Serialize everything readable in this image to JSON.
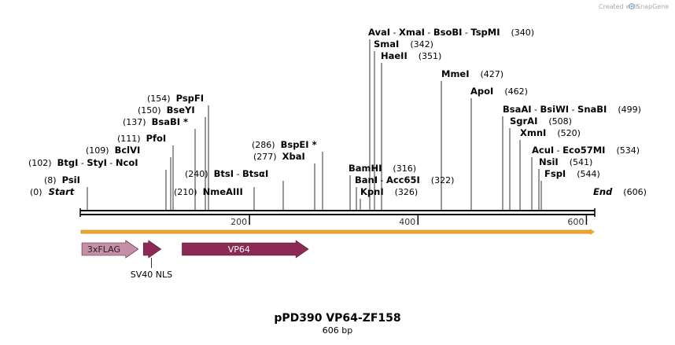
{
  "app": {
    "credit_prefix": "Created with",
    "credit_brand": "SnapGene",
    "brand_color": "#9a9a9a"
  },
  "map": {
    "title": "pPD390 VP64-ZF158",
    "subtitle": "606 bp",
    "length_bp": 606,
    "axis_ticks": [
      {
        "value": 200,
        "label": "200"
      },
      {
        "value": 400,
        "label": "400"
      },
      {
        "value": 600,
        "label": "600"
      }
    ],
    "colors": {
      "backbone": "#000000",
      "orf": "#f5a623",
      "flag": "#c58fa8",
      "nls": "#8b2a55",
      "vp64": "#8b2a55"
    }
  },
  "sites": [
    {
      "pos_text": "(0)",
      "names": [
        "Start"
      ],
      "italic": true
    },
    {
      "pos_text": "(8)",
      "names": [
        "PsiI"
      ]
    },
    {
      "pos_text": "(102)",
      "names": [
        "BtgI",
        "StyI",
        "NcoI"
      ]
    },
    {
      "pos_text": "(109)",
      "names": [
        "BclVI"
      ]
    },
    {
      "pos_text": "(111)",
      "names": [
        "PfoI"
      ]
    },
    {
      "pos_text": "(137)",
      "names": [
        "BsaBI *"
      ]
    },
    {
      "pos_text": "(150)",
      "names": [
        "BseYI"
      ]
    },
    {
      "pos_text": "(154)",
      "names": [
        "PspFI"
      ]
    },
    {
      "pos_text": "(210)",
      "names": [
        "NmeAIII"
      ]
    },
    {
      "pos_text": "(240)",
      "names": [
        "BtsI",
        "BtsαI"
      ]
    },
    {
      "pos_text": "(277)",
      "names": [
        "XbaI"
      ]
    },
    {
      "pos_text": "(286)",
      "names": [
        "BspEI *"
      ]
    },
    {
      "pos_text": "(316)",
      "names": [
        "BamHI"
      ]
    },
    {
      "pos_text": "(322)",
      "names": [
        "BanI",
        "Acc65I"
      ]
    },
    {
      "pos_text": "(326)",
      "names": [
        "KpnI"
      ]
    },
    {
      "pos_text": "(340)",
      "names": [
        "AvaI",
        "XmaI",
        "BsoBI",
        "TspMI"
      ]
    },
    {
      "pos_text": "(342)",
      "names": [
        "SmaI"
      ]
    },
    {
      "pos_text": "(351)",
      "names": [
        "HaeII"
      ]
    },
    {
      "pos_text": "(427)",
      "names": [
        "MmeI"
      ]
    },
    {
      "pos_text": "(462)",
      "names": [
        "ApoI"
      ]
    },
    {
      "pos_text": "(499)",
      "names": [
        "BsaAI",
        "BsiWI",
        "SnaBI"
      ]
    },
    {
      "pos_text": "(508)",
      "names": [
        "SgrAI"
      ]
    },
    {
      "pos_text": "(520)",
      "names": [
        "XmnI"
      ]
    },
    {
      "pos_text": "(534)",
      "names": [
        "AcuI",
        "Eco57MI"
      ]
    },
    {
      "pos_text": "(541)",
      "names": [
        "NsiI"
      ]
    },
    {
      "pos_text": "(544)",
      "names": [
        "FspI"
      ]
    },
    {
      "pos_text": "(606)",
      "names": [
        "End"
      ],
      "italic": true
    }
  ],
  "features": [
    {
      "name": "3xFLAG",
      "start": 1,
      "end": 68,
      "label_inside": true
    },
    {
      "name": "SV40 NLS",
      "start": 74,
      "end": 95,
      "label_inside": false
    },
    {
      "name": "VP64",
      "start": 120,
      "end": 270,
      "label_inside": true
    }
  ]
}
